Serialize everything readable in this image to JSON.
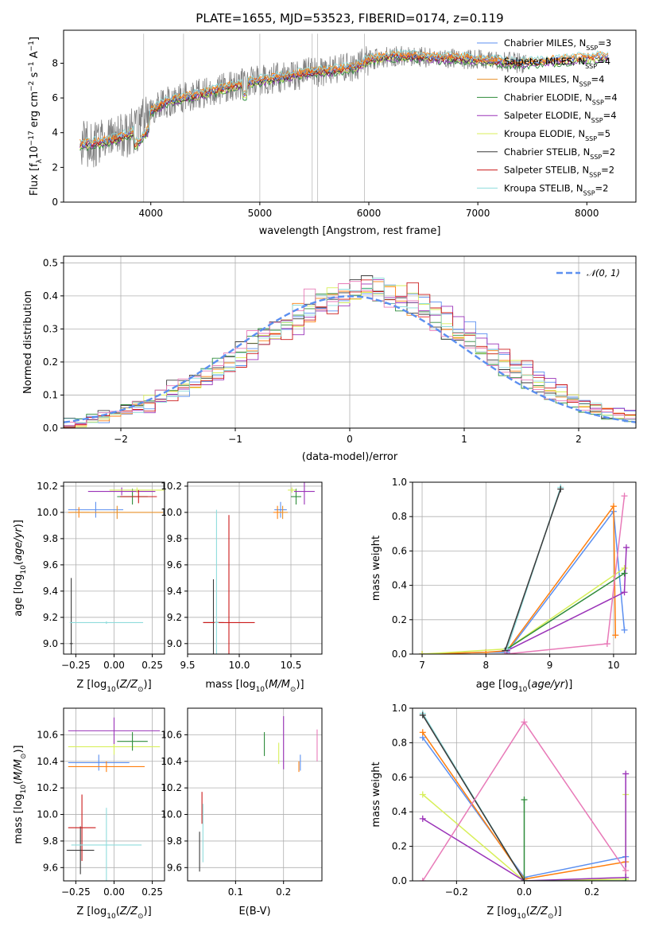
{
  "title": "PLATE=1655, MJD=53523, FIBERID=0174, z=0.119",
  "colors": {
    "Chabrier MILES": "#5b8ff0",
    "Salpeter MILES": "#ff7f0e",
    "Kroupa MILES": "#e8902a",
    "Chabrier ELODIE": "#2e8b3a",
    "Salpeter ELODIE": "#9a32b8",
    "Kroupa ELODIE": "#d8ef5a",
    "Chabrier STELIB": "#3a3a3a",
    "Salpeter STELIB": "#cc1a1a",
    "Kroupa STELIB": "#8fdcdc",
    "data": "#808080",
    "normal": "#5b8ff0"
  },
  "chart_data": [
    {
      "type": "line",
      "xlabel": "wavelength [Angstrom, rest frame]",
      "ylabel": "Flux [f_λ 10^-17 erg cm^-2 s^-1 A^-1]",
      "xlim": [
        3200,
        8450
      ],
      "ylim": [
        0,
        9.9
      ],
      "xticks": [
        4000,
        5000,
        6000,
        7000,
        8000
      ],
      "yticks": [
        0,
        2,
        4,
        6,
        8
      ],
      "legend": [
        {
          "label": "Chabrier MILES, N",
          "sub": "SSP",
          "suffix": "=3"
        },
        {
          "label": "Salpeter MILES, N",
          "sub": "SSP",
          "suffix": "=4"
        },
        {
          "label": "Kroupa MILES, N",
          "sub": "SSP",
          "suffix": "=4"
        },
        {
          "label": "Chabrier ELODIE, N",
          "sub": "SSP",
          "suffix": "=4"
        },
        {
          "label": "Salpeter ELODIE, N",
          "sub": "SSP",
          "suffix": "=4"
        },
        {
          "label": "Kroupa ELODIE, N",
          "sub": "SSP",
          "suffix": "=5"
        },
        {
          "label": "Chabrier STELIB, N",
          "sub": "SSP",
          "suffix": "=2"
        },
        {
          "label": "Salpeter STELIB, N",
          "sub": "SSP",
          "suffix": "=2"
        },
        {
          "label": "Kroupa STELIB, N",
          "sub": "SSP",
          "suffix": "=2"
        }
      ],
      "continuum": {
        "x": [
          3350,
          3600,
          3800,
          3900,
          4000,
          4100,
          4200,
          4300,
          4500,
          4700,
          4900,
          5100,
          5300,
          5500,
          5700,
          5900,
          6000,
          6200,
          6400,
          6600,
          6800,
          7000,
          7200,
          7400,
          7600,
          7800,
          8000,
          8200
        ],
        "y": [
          3.3,
          3.5,
          3.9,
          4.3,
          5.2,
          5.6,
          5.9,
          6.0,
          6.3,
          6.6,
          6.9,
          7.1,
          7.3,
          7.5,
          7.6,
          7.8,
          8.2,
          8.4,
          8.4,
          8.3,
          8.3,
          8.2,
          8.1,
          8.0,
          8.1,
          8.2,
          8.3,
          8.4
        ]
      }
    },
    {
      "type": "histogram",
      "xlabel": "(data-model)/error",
      "ylabel": "Normed distribution",
      "xlim": [
        -2.5,
        2.5
      ],
      "ylim": [
        0,
        0.52
      ],
      "xticks": [
        -2,
        -1,
        0,
        1,
        2
      ],
      "yticks": [
        0.0,
        0.1,
        0.2,
        0.3,
        0.4,
        0.5
      ],
      "legend": "𝒩(0, 1)",
      "bins": [
        -2.5,
        -2.4,
        -2.3,
        -2.2,
        -2.1,
        -2.0,
        -1.9,
        -1.8,
        -1.7,
        -1.6,
        -1.5,
        -1.4,
        -1.3,
        -1.2,
        -1.1,
        -1.0,
        -0.9,
        -0.8,
        -0.7,
        -0.6,
        -0.5,
        -0.4,
        -0.3,
        -0.2,
        -0.1,
        0.0,
        0.1,
        0.2,
        0.3,
        0.4,
        0.5,
        0.6,
        0.7,
        0.8,
        0.9,
        1.0,
        1.1,
        1.2,
        1.3,
        1.4,
        1.5,
        1.6,
        1.7,
        1.8,
        1.9,
        2.0,
        2.1,
        2.2,
        2.3,
        2.4,
        2.5
      ],
      "base_density": [
        0.015,
        0.02,
        0.025,
        0.035,
        0.045,
        0.05,
        0.06,
        0.08,
        0.09,
        0.11,
        0.13,
        0.14,
        0.16,
        0.17,
        0.2,
        0.22,
        0.25,
        0.27,
        0.29,
        0.32,
        0.34,
        0.36,
        0.38,
        0.39,
        0.4,
        0.41,
        0.42,
        0.42,
        0.41,
        0.4,
        0.38,
        0.36,
        0.34,
        0.31,
        0.29,
        0.27,
        0.24,
        0.22,
        0.2,
        0.18,
        0.16,
        0.14,
        0.12,
        0.1,
        0.09,
        0.07,
        0.06,
        0.05,
        0.04,
        0.035
      ]
    },
    {
      "type": "scatter",
      "xlabel": "Z [log10(Z/Z⊙)]",
      "ylabel": "age [log10(age/yr)]",
      "xlim": [
        -0.33,
        0.33
      ],
      "ylim": [
        8.92,
        10.23
      ],
      "xticks": [
        -0.25,
        0.0,
        0.25
      ],
      "yticks": [
        9.0,
        9.2,
        9.4,
        9.6,
        9.8,
        10.0,
        10.2
      ],
      "points": [
        {
          "model": "Chabrier MILES",
          "x": -0.12,
          "y": 10.02,
          "xerr": 0.18,
          "yerr": 0.06
        },
        {
          "model": "Salpeter MILES",
          "x": -0.23,
          "y": 10.0,
          "xerr": 0.07,
          "yerr": 0.04
        },
        {
          "model": "Kroupa MILES",
          "x": 0.02,
          "y": 10.0,
          "xerr": 0.3,
          "yerr": 0.05
        },
        {
          "model": "Chabrier ELODIE",
          "x": 0.12,
          "y": 10.12,
          "xerr": 0.1,
          "yerr": 0.06
        },
        {
          "model": "Salpeter ELODIE",
          "x": 0.05,
          "y": 10.16,
          "xerr": 0.22,
          "yerr": 0.03
        },
        {
          "model": "Kroupa ELODIE",
          "x": 0.15,
          "y": 10.17,
          "xerr": 0.18,
          "yerr": 0.02
        },
        {
          "model": "Chabrier STELIB",
          "x": -0.28,
          "y": 9.0,
          "xerr": 0.01,
          "yerr": 0.5
        },
        {
          "model": "Salpeter STELIB",
          "x": 0.16,
          "y": 10.12,
          "xerr": 0.12,
          "yerr": 0.05
        },
        {
          "model": "Kroupa STELIB",
          "x": -0.05,
          "y": 9.16,
          "xerr": 0.24,
          "yerr": 0.01
        }
      ]
    },
    {
      "type": "scatter",
      "xlabel": "mass [log10(M/M⊙)]",
      "xlim": [
        9.5,
        10.8
      ],
      "ylim": [
        8.92,
        10.23
      ],
      "xticks": [
        9.5,
        10.0,
        10.5
      ],
      "yticks": [
        9.0,
        9.2,
        9.4,
        9.6,
        9.8,
        10.0,
        10.2
      ],
      "points": [
        {
          "model": "Chabrier MILES",
          "x": 10.4,
          "y": 10.02,
          "xerr": 0.06,
          "yerr": 0.06
        },
        {
          "model": "Salpeter MILES",
          "x": 10.37,
          "y": 10.0,
          "xerr": 0.04,
          "yerr": 0.05
        },
        {
          "model": "Kroupa MILES",
          "x": 10.42,
          "y": 10.0,
          "xerr": 0.05,
          "yerr": 0.05
        },
        {
          "model": "Chabrier ELODIE",
          "x": 10.55,
          "y": 10.12,
          "xerr": 0.05,
          "yerr": 0.06
        },
        {
          "model": "Salpeter ELODIE",
          "x": 10.63,
          "y": 10.16,
          "xerr": 0.1,
          "yerr": 0.1
        },
        {
          "model": "Kroupa ELODIE",
          "x": 10.51,
          "y": 10.17,
          "xerr": 0.04,
          "yerr": 0.02
        },
        {
          "model": "Chabrier STELIB",
          "x": 9.75,
          "y": 9.16,
          "xerr": 0.1,
          "yerr": 0.33
        },
        {
          "model": "Salpeter STELIB",
          "x": 9.9,
          "y": 9.16,
          "xerr": 0.25,
          "yerr": 0.82
        },
        {
          "model": "Kroupa STELIB",
          "x": 9.78,
          "y": 9.16,
          "xerr": 0.02,
          "yerr": 0.86
        }
      ]
    },
    {
      "type": "line",
      "xlabel": "age [log10(age/yr)]",
      "ylabel": "mass weight",
      "xlim": [
        6.85,
        10.35
      ],
      "ylim": [
        0,
        1.0
      ],
      "xticks": [
        7,
        8,
        9,
        10
      ],
      "yticks": [
        0.0,
        0.2,
        0.4,
        0.6,
        0.8,
        1.0
      ],
      "series": [
        {
          "model": "Chabrier MILES",
          "x": [
            7.0,
            8.0,
            8.33,
            10.0,
            10.17
          ],
          "y": [
            0.0,
            0.01,
            0.01,
            0.83,
            0.14
          ]
        },
        {
          "model": "Salpeter MILES",
          "x": [
            7.0,
            8.0,
            8.33,
            10.0,
            10.03
          ],
          "y": [
            0.0,
            0.01,
            0.02,
            0.86,
            0.11
          ]
        },
        {
          "model": "Kroupa ELODIE",
          "x": [
            7.0,
            8.33,
            10.17
          ],
          "y": [
            0.0,
            0.03,
            0.5
          ]
        },
        {
          "model": "Salpeter ELODIE",
          "x": [
            8.33,
            10.17,
            10.2
          ],
          "y": [
            0.02,
            0.36,
            0.62
          ]
        },
        {
          "model": "Chabrier ELODIE",
          "x": [
            8.33,
            10.17
          ],
          "y": [
            0.03,
            0.47
          ]
        },
        {
          "model": "Kroupa STELIB",
          "x": [
            8.33,
            9.17
          ],
          "y": [
            0.03,
            0.97
          ]
        },
        {
          "model": "Chabrier STELIB",
          "x": [
            8.3,
            9.17
          ],
          "y": [
            0.02,
            0.96
          ]
        },
        {
          "model": "Pink",
          "x": [
            8.3,
            9.9,
            10.17
          ],
          "y": [
            0.0,
            0.06,
            0.92
          ]
        }
      ]
    },
    {
      "type": "scatter",
      "xlabel": "Z [log10(Z/Z⊙)]",
      "ylabel": "mass [log10(M/M⊙)]",
      "xlim": [
        -0.33,
        0.33
      ],
      "ylim": [
        9.5,
        10.8
      ],
      "xticks": [
        -0.25,
        0.0,
        0.25
      ],
      "yticks": [
        9.6,
        9.8,
        10.0,
        10.2,
        10.4,
        10.6
      ],
      "points": [
        {
          "model": "Chabrier MILES",
          "x": -0.1,
          "y": 10.39,
          "xerr": 0.2,
          "yerr": 0.06
        },
        {
          "model": "Salpeter MILES",
          "x": -0.05,
          "y": 10.36,
          "xerr": 0.25,
          "yerr": 0.04
        },
        {
          "model": "Kroupa ELODIE",
          "x": 0.0,
          "y": 10.51,
          "xerr": 0.3,
          "yerr": 0.06
        },
        {
          "model": "Salpeter ELODIE",
          "x": 0.0,
          "y": 10.63,
          "xerr": 0.3,
          "yerr": 0.1
        },
        {
          "model": "Chabrier ELODIE",
          "x": 0.12,
          "y": 10.55,
          "xerr": 0.1,
          "yerr": 0.07
        },
        {
          "model": "Chabrier STELIB",
          "x": -0.22,
          "y": 9.73,
          "xerr": 0.09,
          "yerr": 0.18
        },
        {
          "model": "Salpeter STELIB",
          "x": -0.21,
          "y": 9.9,
          "xerr": 0.09,
          "yerr": 0.25
        },
        {
          "model": "Kroupa STELIB",
          "x": -0.05,
          "y": 9.77,
          "xerr": 0.23,
          "yerr": 0.28
        }
      ]
    },
    {
      "type": "scatter",
      "xlabel": "E(B-V)",
      "xlim": [
        0.0,
        0.28
      ],
      "ylim": [
        9.5,
        10.8
      ],
      "xticks": [
        0.1,
        0.2
      ],
      "yticks": [
        9.6,
        9.8,
        10.0,
        10.2,
        10.4,
        10.6
      ],
      "points": [
        {
          "model": "Chabrier MILES",
          "x": 0.235,
          "y": 10.39,
          "yerr": 0.06
        },
        {
          "model": "Salpeter MILES",
          "x": 0.232,
          "y": 10.36,
          "yerr": 0.04
        },
        {
          "model": "Kroupa ELODIE",
          "x": 0.19,
          "y": 10.46,
          "yerr": 0.08
        },
        {
          "model": "Salpeter ELODIE",
          "x": 0.2,
          "y": 10.54,
          "yerr": 0.2
        },
        {
          "model": "Chabrier ELODIE",
          "x": 0.16,
          "y": 10.53,
          "yerr": 0.09
        },
        {
          "model": "Pink",
          "x": 0.27,
          "y": 10.52,
          "yerr": 0.12
        },
        {
          "model": "Chabrier STELIB",
          "x": 0.025,
          "y": 9.72,
          "yerr": 0.15
        },
        {
          "model": "Salpeter STELIB",
          "x": 0.03,
          "y": 10.05,
          "yerr": 0.12
        },
        {
          "model": "Kroupa STELIB",
          "x": 0.032,
          "y": 9.86,
          "yerr": 0.22
        }
      ]
    },
    {
      "type": "line",
      "xlabel": "Z [log10(Z/Z⊙)]",
      "ylabel": "mass weight",
      "xlim": [
        -0.33,
        0.33
      ],
      "ylim": [
        0,
        1.0
      ],
      "xticks": [
        -0.2,
        0.0,
        0.2
      ],
      "yticks": [
        0.0,
        0.2,
        0.4,
        0.6,
        0.8,
        1.0
      ],
      "series": [
        {
          "model": "Chabrier MILES",
          "x": [
            -0.3,
            0.0,
            0.3
          ],
          "y": [
            0.83,
            0.02,
            0.14
          ]
        },
        {
          "model": "Salpeter MILES",
          "x": [
            -0.3,
            0.0,
            0.3
          ],
          "y": [
            0.86,
            0.01,
            0.11
          ]
        },
        {
          "model": "Kroupa ELODIE",
          "x": [
            -0.3,
            0.0,
            0.3,
            0.3
          ],
          "y": [
            0.5,
            0.0,
            0.01,
            0.5
          ]
        },
        {
          "model": "Salpeter ELODIE",
          "x": [
            -0.3,
            0.0,
            0.3,
            0.3
          ],
          "y": [
            0.36,
            0.0,
            0.02,
            0.62
          ]
        },
        {
          "model": "Chabrier ELODIE",
          "x": [
            0.0,
            0.0,
            0.3
          ],
          "y": [
            0.47,
            0.0,
            0.0
          ]
        },
        {
          "model": "Kroupa STELIB",
          "x": [
            -0.3,
            0.0
          ],
          "y": [
            0.97,
            0.0
          ]
        },
        {
          "model": "Chabrier STELIB",
          "x": [
            -0.3,
            0.0
          ],
          "y": [
            0.96,
            0.0
          ]
        },
        {
          "model": "Pink",
          "x": [
            -0.3,
            0.0,
            0.3
          ],
          "y": [
            0.0,
            0.92,
            0.06
          ]
        }
      ]
    }
  ]
}
